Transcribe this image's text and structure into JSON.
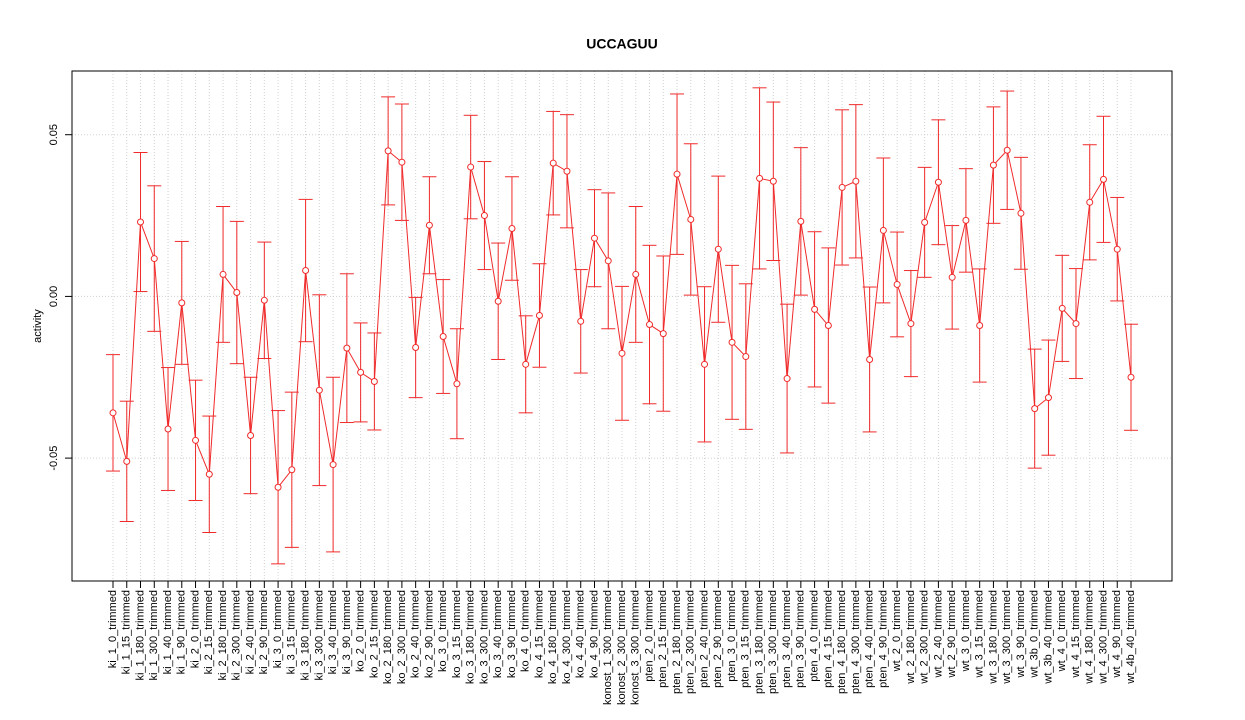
{
  "chart_data": {
    "type": "line",
    "title": "UCCAGUU",
    "y_label": "activity",
    "categories": [
      "ki_1_0_trimmed",
      "ki_1_15_trimmed",
      "ki_1_180_trimmed",
      "ki_1_300_trimmed",
      "ki_1_40_trimmed",
      "ki_1_90_trimmed",
      "ki_2_0_trimmed",
      "ki_2_15_trimmed",
      "ki_2_180_trimmed",
      "ki_2_300_trimmed",
      "ki_2_40_trimmed",
      "ki_2_90_trimmed",
      "ki_3_0_trimmed",
      "ki_3_15_trimmed",
      "ki_3_180_trimmed",
      "ki_3_300_trimmed",
      "ki_3_40_trimmed",
      "ki_3_90_trimmed",
      "ko_2_0_trimmed",
      "ko_2_15_trimmed",
      "ko_2_180_trimmed",
      "ko_2_300_trimmed",
      "ko_2_40_trimmed",
      "ko_2_90_trimmed",
      "ko_3_0_trimmed",
      "ko_3_15_trimmed",
      "ko_3_180_trimmed",
      "ko_3_300_trimmed",
      "ko_3_40_trimmed",
      "ko_3_90_trimmed",
      "ko_4_0_trimmed",
      "ko_4_15_trimmed",
      "ko_4_180_trimmed",
      "ko_4_300_trimmed",
      "ko_4_40_trimmed",
      "ko_4_90_trimmed",
      "konost_1_300_trimmed",
      "konost_2_300_trimmed",
      "konost_3_300_trimmed",
      "pten_2_0_trimmed",
      "pten_2_15_trimmed",
      "pten_2_180_trimmed",
      "pten_2_300_trimmed",
      "pten_2_40_trimmed",
      "pten_2_90_trimmed",
      "pten_3_0_trimmed",
      "pten_3_15_trimmed",
      "pten_3_180_trimmed",
      "pten_3_300_trimmed",
      "pten_3_40_trimmed",
      "pten_3_90_trimmed",
      "pten_4_0_trimmed",
      "pten_4_15_trimmed",
      "pten_4_180_trimmed",
      "pten_4_300_trimmed",
      "pten_4_40_trimmed",
      "pten_4_90_trimmed",
      "wt_2_0_trimmed",
      "wt_2_180_trimmed",
      "wt_2_300_trimmed",
      "wt_2_40_trimmed",
      "wt_2_90_trimmed",
      "wt_3_0_trimmed",
      "wt_3_15_trimmed",
      "wt_3_180_trimmed",
      "wt_3_300_trimmed",
      "wt_3_90_trimmed",
      "wt_3b_0_trimmed",
      "wt_3b_40_trimmed",
      "wt_4_0_trimmed",
      "wt_4_15_trimmed",
      "wt_4_180_trimmed",
      "wt_4_300_trimmed",
      "wt_4_90_trimmed",
      "wt_4b_40_trimmed"
    ],
    "series": [
      {
        "color": "#f02a2a",
        "values": [
          -0.036,
          -0.051,
          0.023,
          0.0117,
          -0.041,
          -0.002,
          -0.0445,
          -0.055,
          0.0068,
          0.0012,
          -0.043,
          -0.0012,
          -0.059,
          -0.0536,
          0.008,
          -0.029,
          -0.052,
          -0.016,
          -0.0235,
          -0.0263,
          0.045,
          0.0415,
          -0.0158,
          0.022,
          -0.0124,
          -0.027,
          0.04,
          0.025,
          -0.0015,
          0.021,
          -0.021,
          -0.0059,
          0.0412,
          0.0387,
          -0.0077,
          0.018,
          0.011,
          -0.0176,
          0.0068,
          -0.0087,
          -0.0115,
          0.0378,
          0.0238,
          -0.021,
          0.0146,
          -0.0142,
          -0.0186,
          0.0365,
          0.0356,
          -0.0254,
          0.0232,
          -0.004,
          -0.009,
          0.0337,
          0.0356,
          -0.0195,
          0.0204,
          0.0037,
          -0.0084,
          0.0229,
          0.0353,
          0.0059,
          0.0235,
          -0.009,
          0.0406,
          0.0452,
          0.0257,
          -0.0347,
          -0.0313,
          -0.0037,
          -0.0084,
          0.0291,
          0.0362,
          0.0146,
          -0.025
        ],
        "errors": [
          0.018,
          0.0186,
          0.0215,
          0.0225,
          0.019,
          0.019,
          0.0186,
          0.018,
          0.021,
          0.022,
          0.018,
          0.018,
          0.0237,
          0.024,
          0.022,
          0.0295,
          0.027,
          0.023,
          0.0153,
          0.015,
          0.0167,
          0.018,
          0.0155,
          0.015,
          0.0176,
          0.017,
          0.016,
          0.0167,
          0.018,
          0.016,
          0.015,
          0.016,
          0.016,
          0.0175,
          0.016,
          0.015,
          0.021,
          0.0207,
          0.021,
          0.0245,
          0.024,
          0.0248,
          0.0234,
          0.024,
          0.0226,
          0.0238,
          0.0225,
          0.028,
          0.0245,
          0.023,
          0.0228,
          0.024,
          0.024,
          0.024,
          0.0237,
          0.0224,
          0.0224,
          0.0162,
          0.0164,
          0.017,
          0.0193,
          0.016,
          0.016,
          0.0175,
          0.018,
          0.0183,
          0.0173,
          0.0184,
          0.0178,
          0.0164,
          0.017,
          0.0178,
          0.0195,
          0.016,
          0.0164
        ]
      }
    ],
    "ylim": [
      -0.088,
      0.0697
    ],
    "yticks": [
      -0.05,
      {
        "value": 0,
        "label": "0.00"
      },
      0.05
    ],
    "grid": true
  }
}
